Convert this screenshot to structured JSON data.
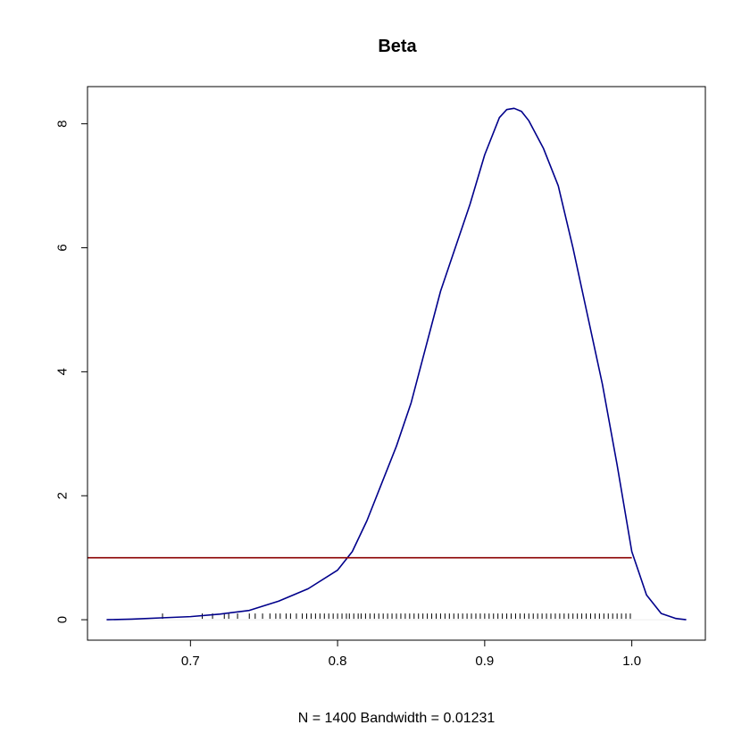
{
  "chart_data": {
    "type": "line",
    "title": "Beta",
    "xlabel": "N = 1400   Bandwidth = 0.01231",
    "ylabel": "",
    "xlim": [
      0.63,
      1.05
    ],
    "ylim": [
      -0.33,
      8.6
    ],
    "x_ticks": [
      0.7,
      0.8,
      0.9,
      1.0
    ],
    "x_tick_labels": [
      "0.7",
      "0.8",
      "0.9",
      "1.0"
    ],
    "y_ticks": [
      0,
      2,
      4,
      6,
      8
    ],
    "y_tick_labels": [
      "0",
      "2",
      "4",
      "6",
      "8"
    ],
    "grid": false,
    "legend": "none",
    "series": [
      {
        "role": "density",
        "color": "#00008b",
        "x": [
          0.643,
          0.66,
          0.68,
          0.7,
          0.72,
          0.74,
          0.76,
          0.78,
          0.8,
          0.81,
          0.82,
          0.83,
          0.84,
          0.85,
          0.86,
          0.87,
          0.88,
          0.89,
          0.9,
          0.91,
          0.915,
          0.92,
          0.925,
          0.93,
          0.94,
          0.95,
          0.96,
          0.97,
          0.98,
          0.99,
          1.0,
          1.01,
          1.02,
          1.03,
          1.037
        ],
        "y": [
          0.0,
          0.01,
          0.03,
          0.05,
          0.09,
          0.15,
          0.3,
          0.5,
          0.8,
          1.1,
          1.6,
          2.2,
          2.8,
          3.5,
          4.4,
          5.3,
          6.0,
          6.7,
          7.5,
          8.1,
          8.23,
          8.25,
          8.2,
          8.05,
          7.6,
          7.0,
          6.0,
          4.9,
          3.8,
          2.5,
          1.1,
          0.4,
          0.1,
          0.02,
          0.0
        ]
      },
      {
        "role": "reference-line",
        "color": "#8b0000",
        "x": [
          0.63,
          1.0
        ],
        "y": [
          1.0,
          1.0
        ]
      }
    ],
    "baseline": {
      "y": 0,
      "color": "#eeeeee"
    },
    "rug": {
      "color": "#000000",
      "x": [
        0.681,
        0.708,
        0.715,
        0.723,
        0.726,
        0.732,
        0.74,
        0.744,
        0.749,
        0.754,
        0.758,
        0.761,
        0.765,
        0.768,
        0.772,
        0.776,
        0.779,
        0.782,
        0.785,
        0.788,
        0.791,
        0.794,
        0.797,
        0.8,
        0.803,
        0.806,
        0.808,
        0.811,
        0.814,
        0.816,
        0.819,
        0.822,
        0.825,
        0.828,
        0.831,
        0.834,
        0.837,
        0.84,
        0.843,
        0.846,
        0.849,
        0.852,
        0.855,
        0.858,
        0.861,
        0.864,
        0.867,
        0.87,
        0.873,
        0.876,
        0.879,
        0.882,
        0.885,
        0.888,
        0.891,
        0.894,
        0.897,
        0.9,
        0.903,
        0.906,
        0.909,
        0.912,
        0.915,
        0.918,
        0.921,
        0.924,
        0.927,
        0.93,
        0.933,
        0.936,
        0.939,
        0.942,
        0.945,
        0.948,
        0.951,
        0.954,
        0.957,
        0.96,
        0.963,
        0.966,
        0.969,
        0.972,
        0.975,
        0.978,
        0.981,
        0.984,
        0.987,
        0.99,
        0.993,
        0.996,
        0.999
      ]
    }
  }
}
